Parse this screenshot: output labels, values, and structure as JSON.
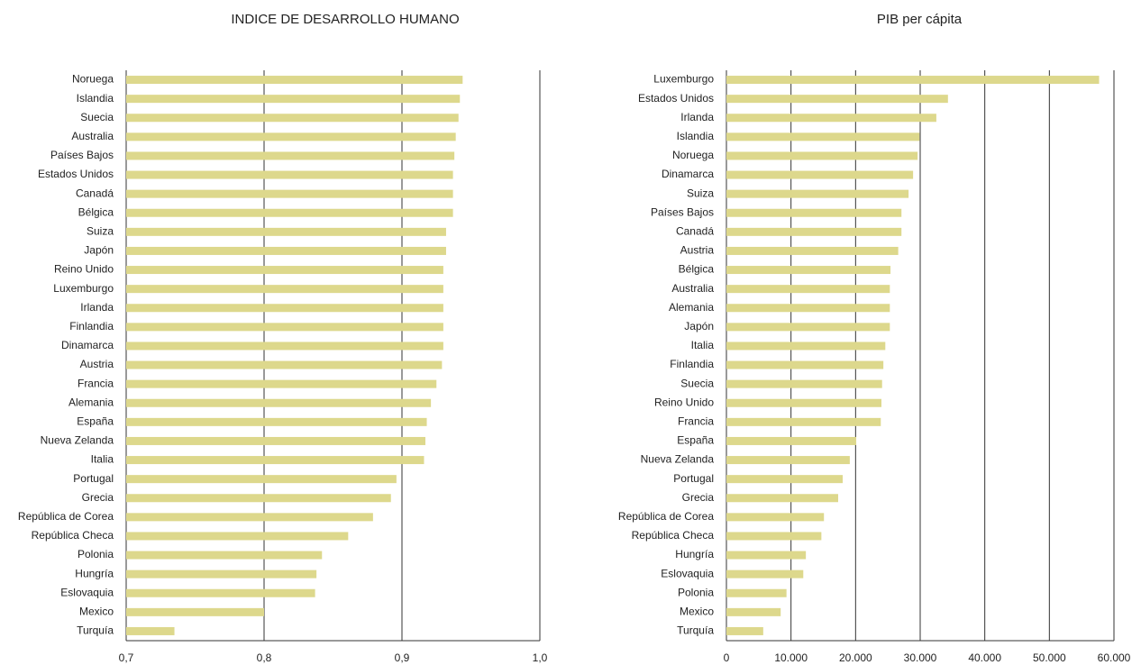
{
  "chart_data": [
    {
      "type": "bar",
      "orientation": "horizontal",
      "title": "INDICE DE DESARROLLO HUMANO",
      "color": "#ddd88c",
      "grid": true,
      "categories": [
        "Noruega",
        "Islandia",
        "Suecia",
        "Australia",
        "Países Bajos",
        "Estados Unidos",
        "Canadá",
        "Bélgica",
        "Suiza",
        "Japón",
        "Reino Unido",
        "Luxemburgo",
        "Irlanda",
        "Finlandia",
        "Dinamarca",
        "Austria",
        "Francia",
        "Alemania",
        "España",
        "Nueva Zelanda",
        "Italia",
        "Portugal",
        "Grecia",
        "República de Corea",
        "República Checa",
        "Polonia",
        "Hungría",
        "Eslovaquia",
        "Mexico",
        "Turquía"
      ],
      "values": [
        0.944,
        0.942,
        0.941,
        0.939,
        0.938,
        0.937,
        0.937,
        0.937,
        0.932,
        0.932,
        0.93,
        0.93,
        0.93,
        0.93,
        0.93,
        0.929,
        0.925,
        0.921,
        0.918,
        0.917,
        0.916,
        0.896,
        0.892,
        0.879,
        0.861,
        0.842,
        0.838,
        0.837,
        0.8,
        0.735
      ],
      "xlim": [
        0.7,
        1.0
      ],
      "xticks": [
        {
          "value": 0.7,
          "label": "0,7"
        },
        {
          "value": 0.8,
          "label": "0,8"
        },
        {
          "value": 0.9,
          "label": "0,9"
        },
        {
          "value": 1.0,
          "label": "1,0"
        }
      ]
    },
    {
      "type": "bar",
      "orientation": "horizontal",
      "title": "PIB per cápita",
      "color": "#ddd88c",
      "grid": true,
      "categories": [
        "Luxemburgo",
        "Estados Unidos",
        "Irlanda",
        "Islandia",
        "Noruega",
        "Dinamarca",
        "Suiza",
        "Países Bajos",
        "Canadá",
        "Austria",
        "Bélgica",
        "Australia",
        "Alemania",
        "Japón",
        "Italia",
        "Finlandia",
        "Suecia",
        "Reino Unido",
        "Francia",
        "España",
        "Nueva Zelanda",
        "Portugal",
        "Grecia",
        "República de Corea",
        "República Checa",
        "Hungría",
        "Eslovaquia",
        "Polonia",
        "Mexico",
        "Turquía"
      ],
      "values": [
        57700,
        34300,
        32500,
        29900,
        29600,
        28900,
        28200,
        27100,
        27100,
        26600,
        25400,
        25300,
        25300,
        25300,
        24600,
        24300,
        24100,
        24000,
        23900,
        20100,
        19100,
        18000,
        17300,
        15100,
        14700,
        12300,
        11900,
        9300,
        8400,
        5700
      ],
      "xlim": [
        0,
        60000
      ],
      "xticks": [
        0,
        {
          "value": 10000,
          "label": "10.000"
        },
        {
          "value": 20000,
          "label": "20.000"
        },
        {
          "value": 30000,
          "label": "30.000"
        },
        {
          "value": 40000,
          "label": "40.000"
        },
        {
          "value": 50000,
          "label": "50.000"
        },
        {
          "value": 60000,
          "label": "60.000"
        }
      ]
    }
  ]
}
